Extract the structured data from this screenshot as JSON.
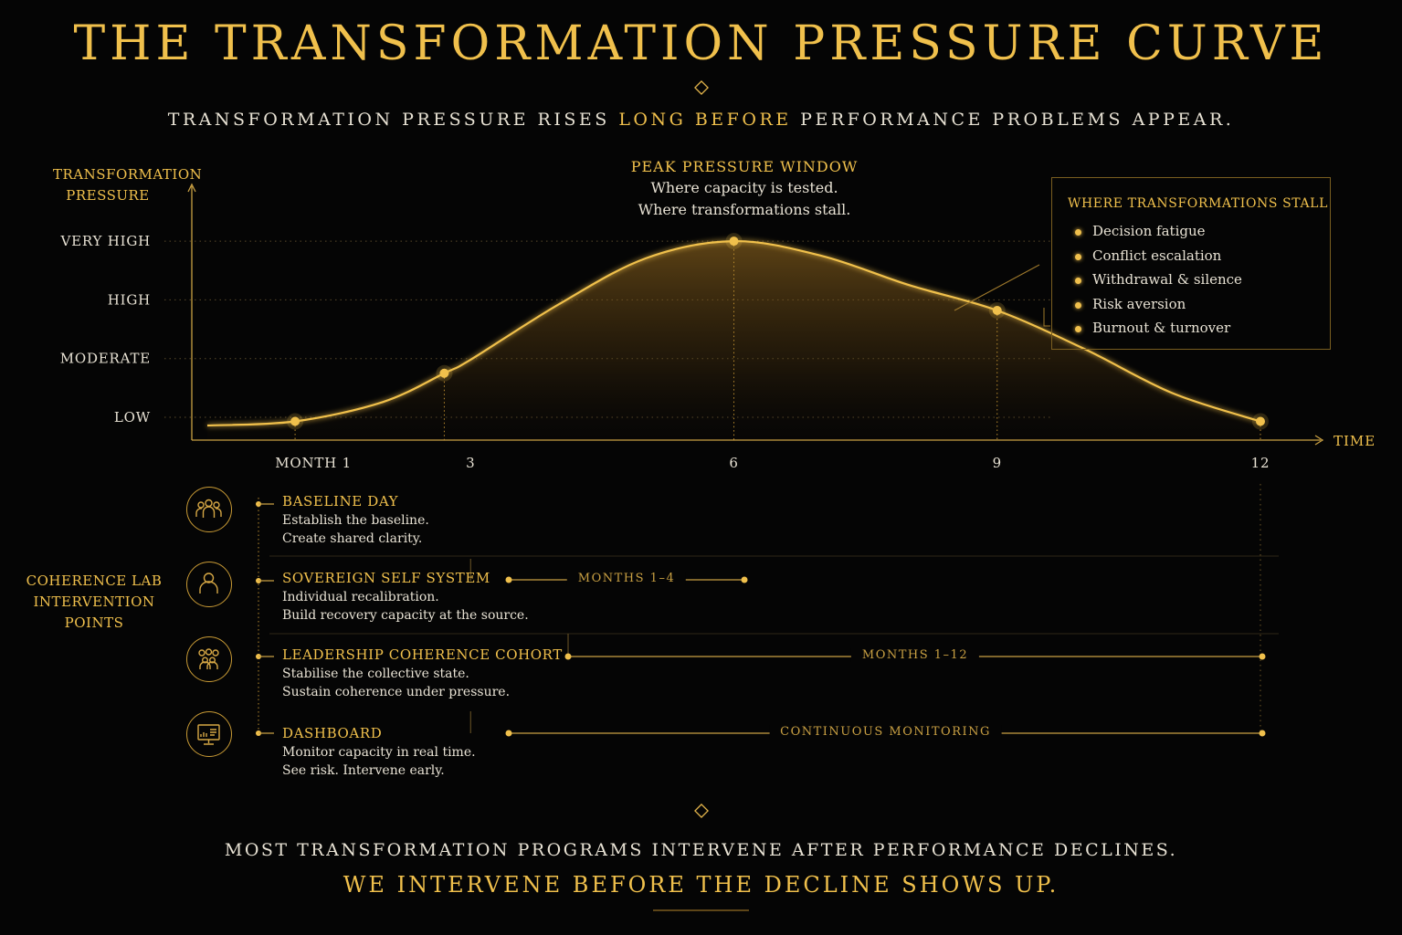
{
  "header": {
    "title": "THE TRANSFORMATION PRESSURE CURVE",
    "subtitle_pre": "TRANSFORMATION PRESSURE RISES ",
    "subtitle_highlight": "LONG BEFORE",
    "subtitle_post": " PERFORMANCE PROBLEMS APPEAR."
  },
  "chart_data": {
    "type": "area",
    "ylabel": "TRANSFORMATION PRESSURE",
    "xlabel": "TIME",
    "y_levels": [
      "LOW",
      "MODERATE",
      "HIGH",
      "VERY HIGH"
    ],
    "x_ticks": [
      {
        "value": 1,
        "label": "MONTH 1"
      },
      {
        "value": 3,
        "label": "3"
      },
      {
        "value": 6,
        "label": "6"
      },
      {
        "value": 9,
        "label": "9"
      },
      {
        "value": 12,
        "label": "12"
      }
    ],
    "xlim": [
      0,
      12.7
    ],
    "ylim": [
      0.6,
      4.0
    ],
    "grid": "dotted guide lines at level ticks",
    "series": [
      {
        "x": [
          0,
          1,
          2,
          2.7,
          3,
          4,
          5,
          6,
          7,
          8,
          9,
          10,
          11,
          12
        ],
        "y": [
          0.86,
          0.93,
          1.26,
          1.75,
          1.98,
          2.92,
          3.71,
          4.0,
          3.75,
          3.25,
          2.82,
          2.16,
          1.41,
          0.93
        ]
      }
    ],
    "highlighted_points": [
      {
        "x": 1,
        "y": 0.93
      },
      {
        "x": 2.7,
        "y": 1.75
      },
      {
        "x": 6,
        "y": 4.0
      },
      {
        "x": 9,
        "y": 2.82
      },
      {
        "x": 12,
        "y": 0.93
      }
    ],
    "annotations": {
      "peak": {
        "title": "PEAK PRESSURE WINDOW",
        "lines": [
          "Where capacity is tested.",
          "Where transformations stall."
        ]
      },
      "stall_box": {
        "title": "WHERE TRANSFORMATIONS STALL",
        "items": [
          "Decision fatigue",
          "Conflict escalation",
          "Withdrawal & silence",
          "Risk aversion",
          "Burnout & turnover"
        ]
      }
    }
  },
  "interventions": {
    "label": [
      "COHERENCE LAB",
      "INTERVENTION",
      "POINTS"
    ],
    "items": [
      {
        "title": "BASELINE DAY",
        "desc": [
          "Establish the baseline.",
          "Create shared clarity."
        ],
        "icon": "group-icon",
        "range": null
      },
      {
        "title": "SOVEREIGN SELF SYSTEM",
        "desc": [
          "Individual recalibration.",
          "Build recovery capacity at the source."
        ],
        "icon": "person-icon",
        "range": {
          "label": "MONTHS 1–4",
          "start": 3,
          "end": 6
        }
      },
      {
        "title": "LEADERSHIP COHERENCE COHORT",
        "desc": [
          "Stabilise the collective state.",
          "Sustain coherence under pressure."
        ],
        "icon": "team-icon",
        "range": {
          "label": "MONTHS 1–12",
          "start": 3.25,
          "end": 12
        }
      },
      {
        "title": "DASHBOARD",
        "desc": [
          "Monitor capacity in real time.",
          "See risk. Intervene early."
        ],
        "icon": "dashboard-icon",
        "range": {
          "label": "CONTINUOUS MONITORING",
          "start": 3,
          "end": 12
        }
      }
    ]
  },
  "footer": {
    "line1": "MOST TRANSFORMATION PROGRAMS INTERVENE AFTER PERFORMANCE DECLINES.",
    "line2": "WE INTERVENE BEFORE THE DECLINE SHOWS UP."
  },
  "colors": {
    "gold": "#f0c04c",
    "background": "#050505",
    "text": "#ece6d8"
  }
}
